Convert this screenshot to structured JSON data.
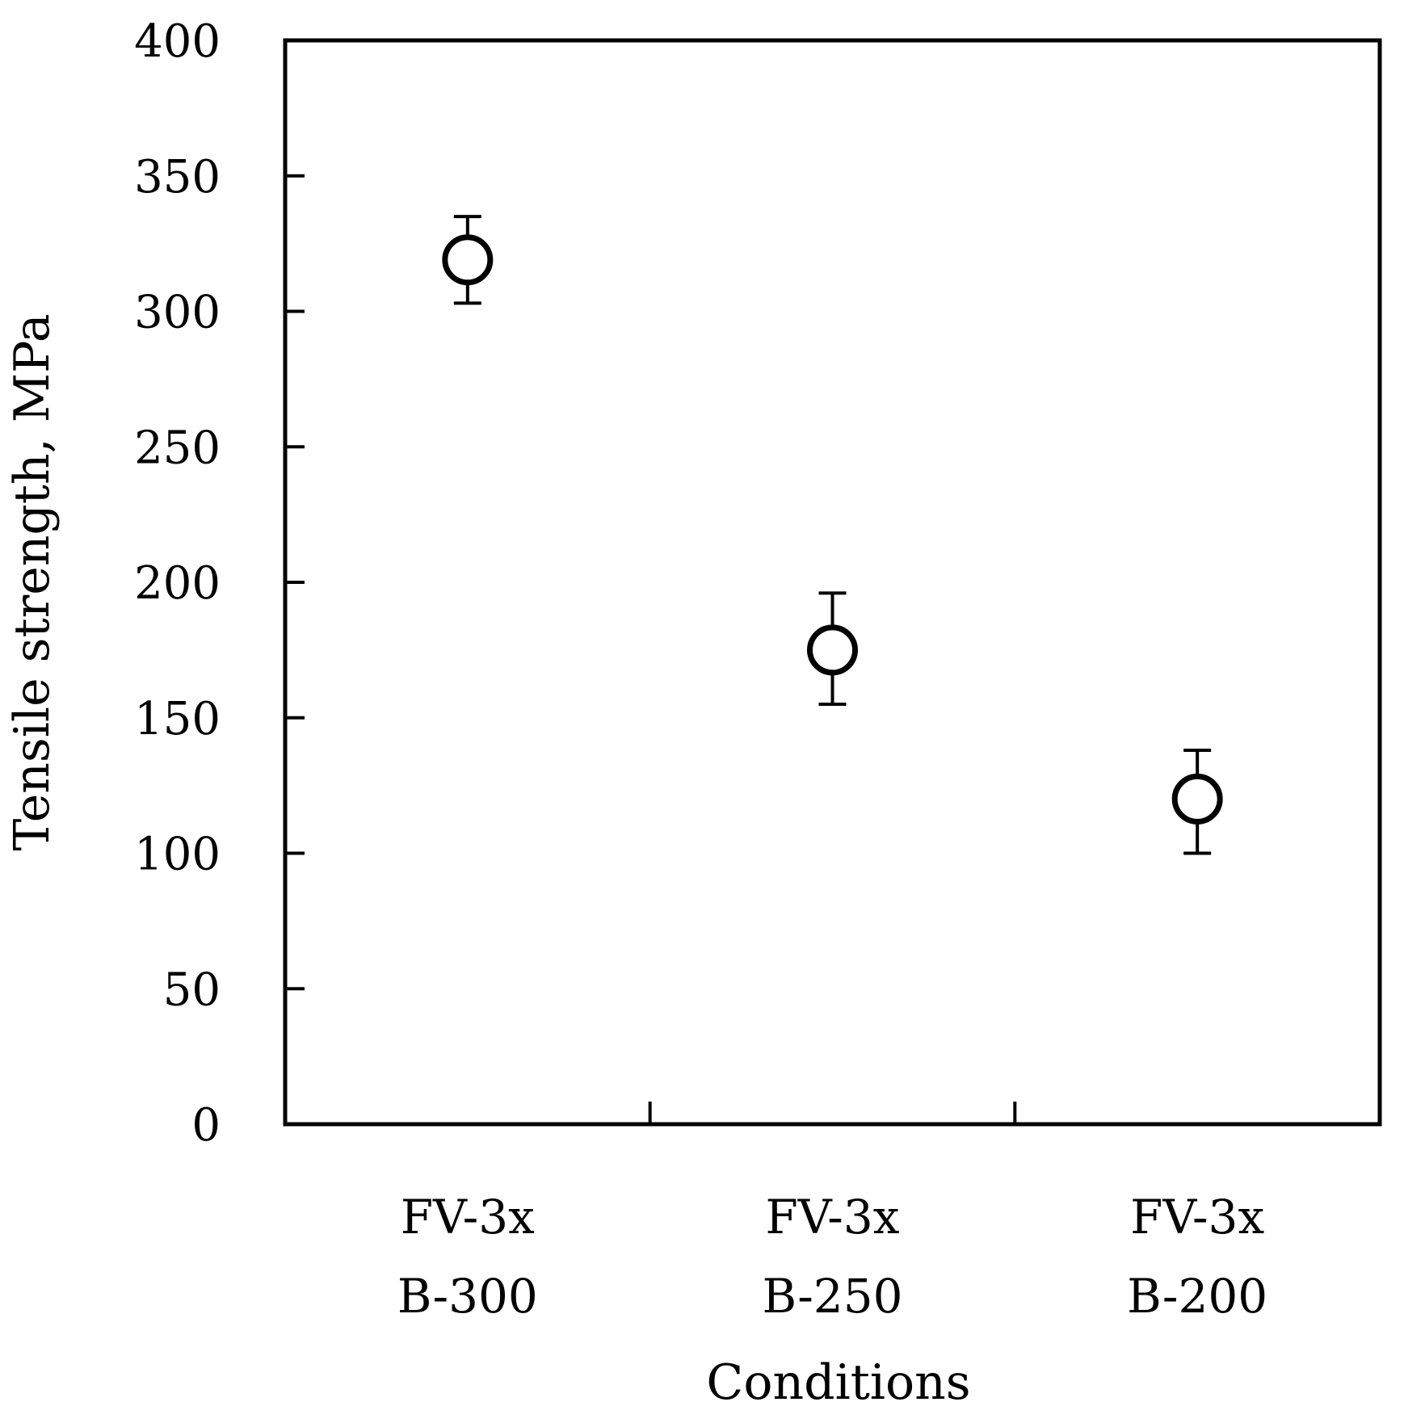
{
  "chart_data": {
    "type": "scatter",
    "xlabel": "Conditions",
    "ylabel": "Tensile strength, MPa",
    "ylim": [
      0,
      400
    ],
    "yticks": [
      "0",
      "50",
      "100",
      "150",
      "200",
      "250",
      "300",
      "350",
      "400"
    ],
    "grid": false,
    "categories": [
      {
        "line1": "FV-3x",
        "line2": "B-300"
      },
      {
        "line1": "FV-3x",
        "line2": "B-250"
      },
      {
        "line1": "FV-3x",
        "line2": "B-200"
      }
    ],
    "values": [
      319,
      175,
      120
    ],
    "error_low": [
      303,
      155,
      100
    ],
    "error_high": [
      335,
      196,
      138
    ],
    "marker": "open-circle",
    "color": "#000000"
  }
}
